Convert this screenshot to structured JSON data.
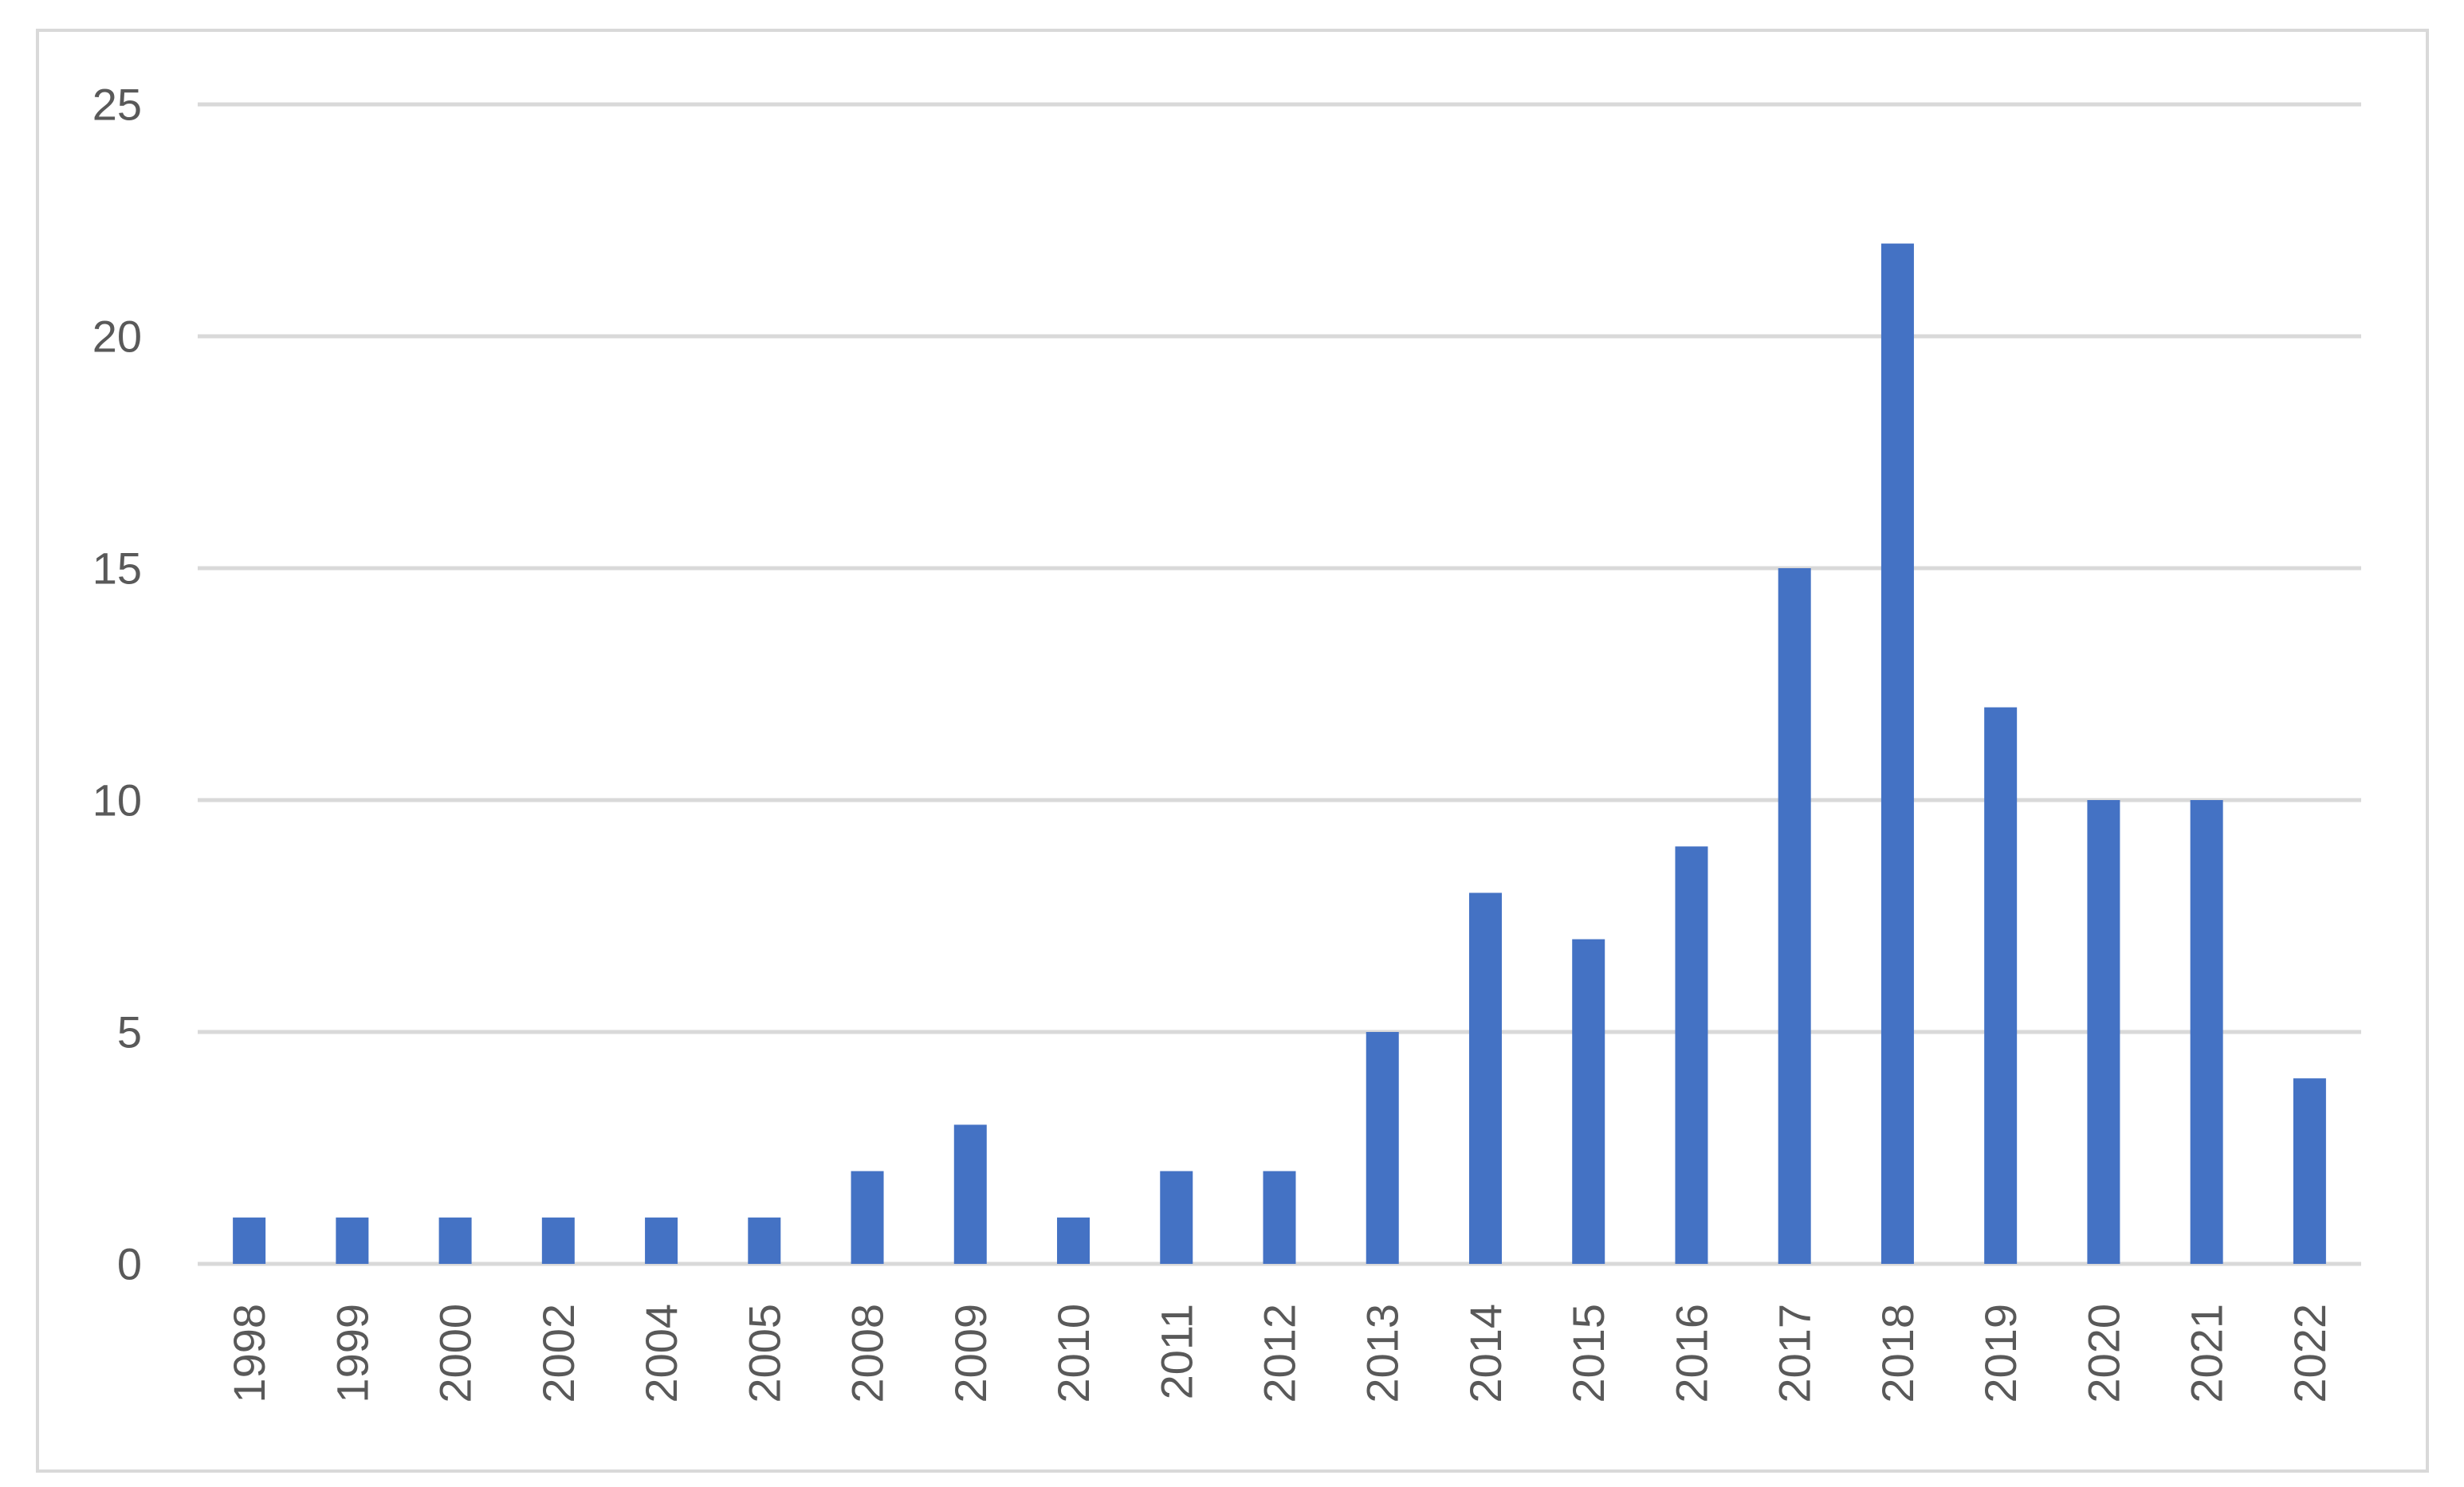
{
  "chart_data": {
    "type": "bar",
    "title": "",
    "xlabel": "",
    "ylabel": "",
    "categories": [
      "1998",
      "1999",
      "2000",
      "2002",
      "2004",
      "2005",
      "2008",
      "2009",
      "2010",
      "2011",
      "2012",
      "2013",
      "2014",
      "2015",
      "2016",
      "2017",
      "2018",
      "2019",
      "2020",
      "2021",
      "2022"
    ],
    "values": [
      1,
      1,
      1,
      1,
      1,
      1,
      2,
      3,
      1,
      2,
      2,
      5,
      8,
      7,
      9,
      15,
      22,
      12,
      10,
      10,
      4
    ],
    "ylim": [
      0,
      25
    ],
    "yticks": [
      0,
      5,
      10,
      15,
      20,
      25
    ],
    "grid": true,
    "legend": "none",
    "colors": {
      "bar": "#4472c4",
      "grid": "#d9d9d9",
      "text": "#595959",
      "border": "#d9d9d9"
    }
  }
}
